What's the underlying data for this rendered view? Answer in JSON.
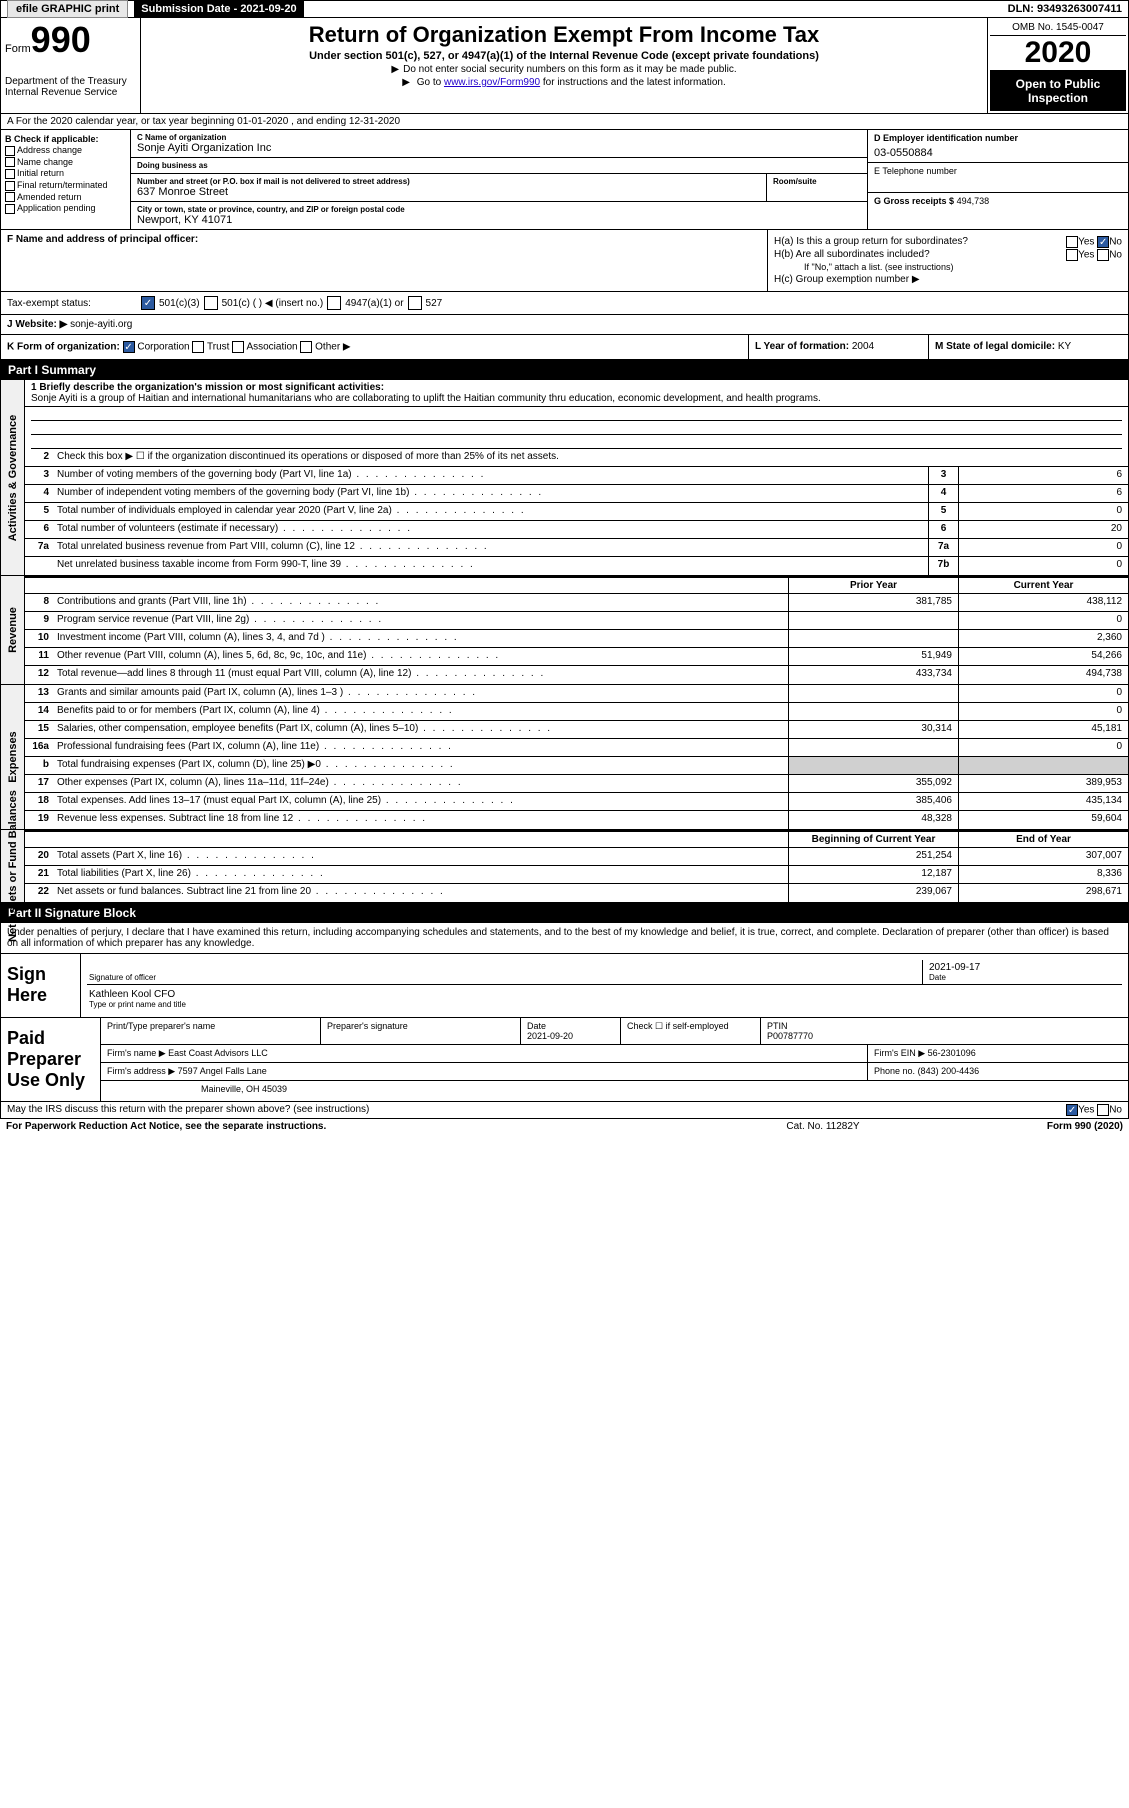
{
  "topbar": {
    "efile": "efile GRAPHIC print",
    "submission_label": "Submission Date - 2021-09-20",
    "dln": "DLN: 93493263007411"
  },
  "header": {
    "form_prefix": "Form",
    "form_number": "990",
    "dept": "Department of the Treasury\nInternal Revenue Service",
    "title": "Return of Organization Exempt From Income Tax",
    "sub": "Under section 501(c), 527, or 4947(a)(1) of the Internal Revenue Code (except private foundations)",
    "note1": "Do not enter social security numbers on this form as it may be made public.",
    "note2_pre": "Go to ",
    "note2_link": "www.irs.gov/Form990",
    "note2_post": " for instructions and the latest information.",
    "omb": "OMB No. 1545-0047",
    "year": "2020",
    "open": "Open to Public Inspection"
  },
  "row_a": "A For the 2020 calendar year, or tax year beginning 01-01-2020    , and ending 12-31-2020",
  "section_b": {
    "header": "B Check if applicable:",
    "items": [
      "Address change",
      "Name change",
      "Initial return",
      "Final return/terminated",
      "Amended return",
      "Application pending"
    ]
  },
  "section_c": {
    "name_lbl": "C Name of organization",
    "name_val": "Sonje Ayiti Organization Inc",
    "dba_lbl": "Doing business as",
    "dba_val": "",
    "addr_lbl": "Number and street (or P.O. box if mail is not delivered to street address)",
    "addr_val": "637 Monroe Street",
    "room_lbl": "Room/suite",
    "city_lbl": "City or town, state or province, country, and ZIP or foreign postal code",
    "city_val": "Newport, KY  41071"
  },
  "section_d": {
    "lbl": "D Employer identification number",
    "val": "03-0550884"
  },
  "section_e": {
    "lbl": "E Telephone number",
    "val": ""
  },
  "section_g": {
    "lbl": "G Gross receipts $",
    "val": "494,738"
  },
  "section_f": {
    "lbl": "F  Name and address of principal officer:",
    "val": ""
  },
  "section_h": {
    "ha": "H(a)  Is this a group return for subordinates?",
    "hb": "H(b)  Are all subordinates included?",
    "hb_note": "If \"No,\" attach a list. (see instructions)",
    "hc": "H(c)  Group exemption number ▶"
  },
  "tax_status": {
    "lbl": "Tax-exempt status:",
    "opt1": "501(c)(3)",
    "opt2": "501(c) (  ) ◀ (insert no.)",
    "opt3": "4947(a)(1) or",
    "opt4": "527"
  },
  "website": {
    "lbl": "J   Website: ▶",
    "val": "sonje-ayiti.org"
  },
  "row_k": {
    "lbl": "K Form of organization:",
    "opts": [
      "Corporation",
      "Trust",
      "Association",
      "Other ▶"
    ],
    "l_lbl": "L Year of formation:",
    "l_val": "2004",
    "m_lbl": "M State of legal domicile:",
    "m_val": "KY"
  },
  "part1": {
    "header": "Part I      Summary",
    "mission_lbl": "1   Briefly describe the organization's mission or most significant activities:",
    "mission": "Sonje Ayiti is a group of Haitian and international humanitarians who are collaborating to uplift the Haitian community thru education, economic development, and health programs.",
    "line2": "Check this box ▶ ☐  if the organization discontinued its operations or disposed of more than 25% of its net assets.",
    "rows_gov": [
      {
        "n": "3",
        "d": "Number of voting members of the governing body (Part VI, line 1a)",
        "box": "3",
        "v": "6"
      },
      {
        "n": "4",
        "d": "Number of independent voting members of the governing body (Part VI, line 1b)",
        "box": "4",
        "v": "6"
      },
      {
        "n": "5",
        "d": "Total number of individuals employed in calendar year 2020 (Part V, line 2a)",
        "box": "5",
        "v": "0"
      },
      {
        "n": "6",
        "d": "Total number of volunteers (estimate if necessary)",
        "box": "6",
        "v": "20"
      },
      {
        "n": "7a",
        "d": "Total unrelated business revenue from Part VIII, column (C), line 12",
        "box": "7a",
        "v": "0"
      },
      {
        "n": "",
        "d": "Net unrelated business taxable income from Form 990-T, line 39",
        "box": "7b",
        "v": "0"
      }
    ],
    "col_headers": {
      "prior": "Prior Year",
      "current": "Current Year"
    },
    "rows_rev": [
      {
        "n": "8",
        "d": "Contributions and grants (Part VIII, line 1h)",
        "p": "381,785",
        "c": "438,112"
      },
      {
        "n": "9",
        "d": "Program service revenue (Part VIII, line 2g)",
        "p": "",
        "c": "0"
      },
      {
        "n": "10",
        "d": "Investment income (Part VIII, column (A), lines 3, 4, and 7d )",
        "p": "",
        "c": "2,360"
      },
      {
        "n": "11",
        "d": "Other revenue (Part VIII, column (A), lines 5, 6d, 8c, 9c, 10c, and 11e)",
        "p": "51,949",
        "c": "54,266"
      },
      {
        "n": "12",
        "d": "Total revenue—add lines 8 through 11 (must equal Part VIII, column (A), line 12)",
        "p": "433,734",
        "c": "494,738"
      }
    ],
    "rows_exp": [
      {
        "n": "13",
        "d": "Grants and similar amounts paid (Part IX, column (A), lines 1–3 )",
        "p": "",
        "c": "0"
      },
      {
        "n": "14",
        "d": "Benefits paid to or for members (Part IX, column (A), line 4)",
        "p": "",
        "c": "0"
      },
      {
        "n": "15",
        "d": "Salaries, other compensation, employee benefits (Part IX, column (A), lines 5–10)",
        "p": "30,314",
        "c": "45,181"
      },
      {
        "n": "16a",
        "d": "Professional fundraising fees (Part IX, column (A), line 11e)",
        "p": "",
        "c": "0"
      },
      {
        "n": "b",
        "d": "Total fundraising expenses (Part IX, column (D), line 25) ▶0",
        "p": "shaded",
        "c": "shaded"
      },
      {
        "n": "17",
        "d": "Other expenses (Part IX, column (A), lines 11a–11d, 11f–24e)",
        "p": "355,092",
        "c": "389,953"
      },
      {
        "n": "18",
        "d": "Total expenses. Add lines 13–17 (must equal Part IX, column (A), line 25)",
        "p": "385,406",
        "c": "435,134"
      },
      {
        "n": "19",
        "d": "Revenue less expenses. Subtract line 18 from line 12",
        "p": "48,328",
        "c": "59,604"
      }
    ],
    "net_headers": {
      "begin": "Beginning of Current Year",
      "end": "End of Year"
    },
    "rows_net": [
      {
        "n": "20",
        "d": "Total assets (Part X, line 16)",
        "p": "251,254",
        "c": "307,007"
      },
      {
        "n": "21",
        "d": "Total liabilities (Part X, line 26)",
        "p": "12,187",
        "c": "8,336"
      },
      {
        "n": "22",
        "d": "Net assets or fund balances. Subtract line 21 from line 20",
        "p": "239,067",
        "c": "298,671"
      }
    ]
  },
  "part2": {
    "header": "Part II      Signature Block",
    "declare": "Under penalties of perjury, I declare that I have examined this return, including accompanying schedules and statements, and to the best of my knowledge and belief, it is true, correct, and complete. Declaration of preparer (other than officer) is based on all information of which preparer has any knowledge.",
    "sign_here": "Sign Here",
    "sig_officer_lbl": "Signature of officer",
    "sig_date": "2021-09-17",
    "sig_date_lbl": "Date",
    "officer_name": "Kathleen Kool CFO",
    "officer_name_lbl": "Type or print name and title",
    "paid_label": "Paid Preparer Use Only",
    "prep_name_lbl": "Print/Type preparer's name",
    "prep_sig_lbl": "Preparer's signature",
    "prep_date_lbl": "Date",
    "prep_date": "2021-09-20",
    "prep_self_lbl": "Check ☐ if self-employed",
    "ptin_lbl": "PTIN",
    "ptin": "P00787770",
    "firm_name_lbl": "Firm's name     ▶",
    "firm_name": "East Coast Advisors LLC",
    "firm_ein_lbl": "Firm's EIN ▶",
    "firm_ein": "56-2301096",
    "firm_addr_lbl": "Firm's address ▶",
    "firm_addr1": "7597 Angel Falls Lane",
    "firm_addr2": "Maineville, OH  45039",
    "phone_lbl": "Phone no.",
    "phone": "(843) 200-4436",
    "discuss": "May the IRS discuss this return with the preparer shown above? (see instructions)",
    "paperwork": "For Paperwork Reduction Act Notice, see the separate instructions.",
    "cat": "Cat. No. 11282Y",
    "form_foot": "Form 990 (2020)"
  },
  "labels": {
    "vert_gov": "Activities & Governance",
    "vert_rev": "Revenue",
    "vert_exp": "Expenses",
    "vert_net": "Net Assets or Fund Balances"
  }
}
